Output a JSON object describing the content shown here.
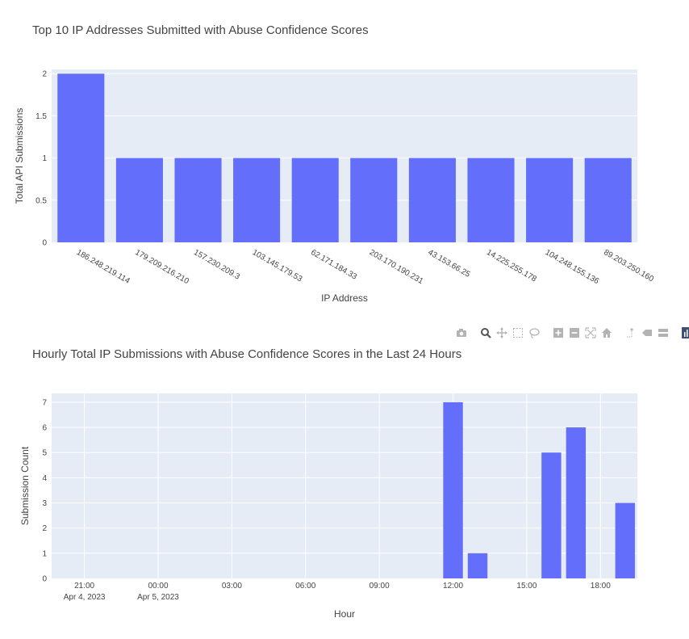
{
  "modebar": {
    "buttons": [
      {
        "name": "camera-icon",
        "label": "Download plot as png"
      },
      {
        "name": "zoom-icon",
        "label": "Zoom"
      },
      {
        "name": "pan-icon",
        "label": "Pan"
      },
      {
        "name": "box-select-icon",
        "label": "Box Select"
      },
      {
        "name": "lasso-select-icon",
        "label": "Lasso Select"
      },
      {
        "name": "zoom-in-icon",
        "label": "Zoom in"
      },
      {
        "name": "zoom-out-icon",
        "label": "Zoom out"
      },
      {
        "name": "autoscale-icon",
        "label": "Autoscale"
      },
      {
        "name": "home-icon",
        "label": "Reset axes"
      },
      {
        "name": "spike-lines-icon",
        "label": "Toggle Spike Lines"
      },
      {
        "name": "hover-closest-icon",
        "label": "Show closest data on hover"
      },
      {
        "name": "hover-compare-icon",
        "label": "Compare data on hover"
      },
      {
        "name": "plotly-logo-icon",
        "label": "Produced with Plotly"
      }
    ]
  },
  "colors": {
    "bar": "#636efa",
    "plot_bg": "#e5ecf6",
    "grid": "#ffffff",
    "text": "#444444",
    "modebar_icon": "#b3b3b3",
    "logo": "#3f4f75"
  },
  "chart_data": [
    {
      "type": "bar",
      "title": "Top 10 IP Addresses Submitted with Abuse Confidence Scores",
      "xlabel": "IP Address",
      "ylabel": "Total API Submissions",
      "categories": [
        "186.248.219.114",
        "179.209.216.210",
        "157.230.209.3",
        "103.145.179.53",
        "62.171.184.33",
        "203.170.190.231",
        "43.153.66.25",
        "14.225.255.178",
        "104.248.155.136",
        "89.203.250.160"
      ],
      "values": [
        2,
        1,
        1,
        1,
        1,
        1,
        1,
        1,
        1,
        1
      ],
      "ylim": [
        0,
        2.05
      ],
      "yticks": [
        0,
        0.5,
        1,
        1.5,
        2
      ],
      "ytick_labels": [
        "0",
        "0.5",
        "1",
        "1.5",
        "2"
      ],
      "grid": true,
      "legend": "none"
    },
    {
      "type": "bar",
      "title": "Hourly Total IP Submissions with Abuse Confidence Scores in the Last 24 Hours",
      "xlabel": "Hour",
      "ylabel": "Submission Count",
      "x": [
        "2023-04-05 12:00",
        "2023-04-05 13:00",
        "2023-04-05 16:00",
        "2023-04-05 17:00",
        "2023-04-05 19:00"
      ],
      "values": [
        7,
        1,
        5,
        6,
        3
      ],
      "xlim": [
        "2023-04-04 19:40",
        "2023-04-05 19:30"
      ],
      "xticks": [
        "2023-04-04 21:00",
        "2023-04-05 00:00",
        "2023-04-05 03:00",
        "2023-04-05 06:00",
        "2023-04-05 09:00",
        "2023-04-05 12:00",
        "2023-04-05 15:00",
        "2023-04-05 18:00"
      ],
      "xtick_labels": [
        [
          "21:00",
          "Apr 4, 2023"
        ],
        [
          "00:00",
          "Apr 5, 2023"
        ],
        [
          "03:00",
          ""
        ],
        [
          "06:00",
          ""
        ],
        [
          "09:00",
          ""
        ],
        [
          "12:00",
          ""
        ],
        [
          "15:00",
          ""
        ],
        [
          "18:00",
          ""
        ]
      ],
      "ylim": [
        0,
        7.35
      ],
      "yticks": [
        0,
        1,
        2,
        3,
        4,
        5,
        6,
        7
      ],
      "ytick_labels": [
        "0",
        "1",
        "2",
        "3",
        "4",
        "5",
        "6",
        "7"
      ],
      "grid": true,
      "legend": "none"
    }
  ]
}
